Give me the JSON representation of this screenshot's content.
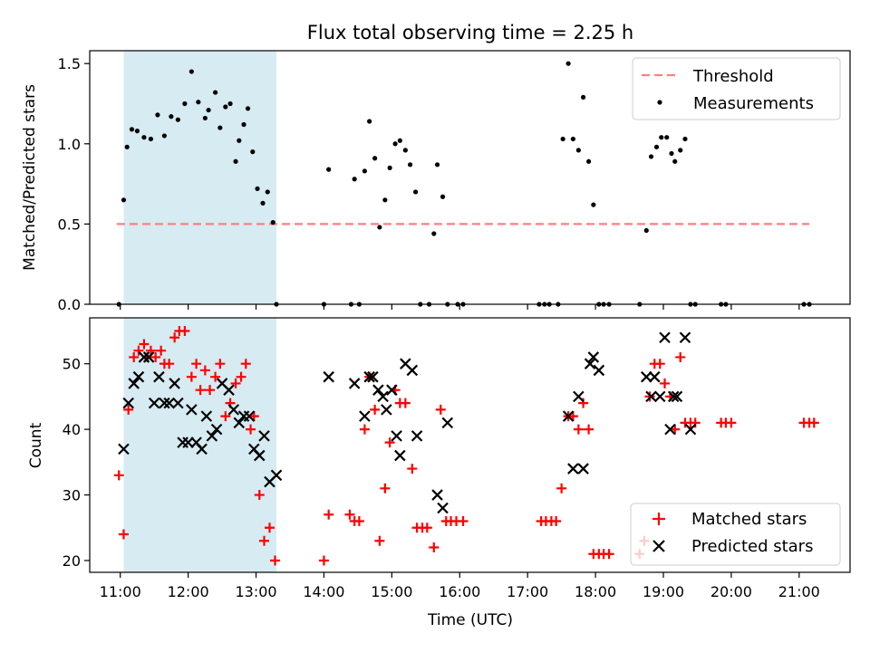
{
  "title": "Flux total observing time = 2.25 h",
  "colors": {
    "threshold": "#ff7f7f",
    "measurement": "#000000",
    "matched": "#ff0000",
    "predicted": "#000000",
    "highlight": "#add8e6"
  },
  "chart_data": [
    {
      "type": "scatter",
      "ylabel": "Matched/Predicted stars",
      "xlim": [
        10.55,
        21.75
      ],
      "ylim": [
        0,
        1.58
      ],
      "yticks": [
        0.0,
        0.5,
        1.0,
        1.5
      ],
      "ytick_labels": [
        "0.0",
        "0.5",
        "1.0",
        "1.5"
      ],
      "highlight_span": [
        11.05,
        13.3
      ],
      "grid": false,
      "legend_position": "upper right",
      "threshold": {
        "name": "Threshold",
        "value": 0.5,
        "x_range": [
          10.95,
          21.15
        ]
      },
      "series": [
        {
          "name": "Measurements",
          "x": [
            10.98,
            11.05,
            11.1,
            11.17,
            11.25,
            11.35,
            11.45,
            11.55,
            11.65,
            11.75,
            11.85,
            11.95,
            12.05,
            12.15,
            12.25,
            12.3,
            12.4,
            12.47,
            12.55,
            12.62,
            12.7,
            12.75,
            12.82,
            12.88,
            12.95,
            13.02,
            13.1,
            13.17,
            13.25,
            13.3,
            14.0,
            14.07,
            14.4,
            14.45,
            14.52,
            14.6,
            14.67,
            14.75,
            14.82,
            14.9,
            14.97,
            15.05,
            15.12,
            15.2,
            15.27,
            15.35,
            15.42,
            15.55,
            15.62,
            15.67,
            15.75,
            15.82,
            15.97,
            16.05,
            17.17,
            17.25,
            17.32,
            17.45,
            17.52,
            17.6,
            17.67,
            17.75,
            17.82,
            17.9,
            17.97,
            18.05,
            18.12,
            18.2,
            18.65,
            18.75,
            18.82,
            18.9,
            18.97,
            19.05,
            19.12,
            19.17,
            19.25,
            19.32,
            19.4,
            19.47,
            19.85,
            19.92,
            21.07,
            21.15
          ],
          "y": [
            0.0,
            0.65,
            0.98,
            1.09,
            1.08,
            1.04,
            1.03,
            1.18,
            1.05,
            1.17,
            1.15,
            1.25,
            1.45,
            1.26,
            1.16,
            1.21,
            1.32,
            1.1,
            1.23,
            1.25,
            0.89,
            1.02,
            1.12,
            1.22,
            0.95,
            0.72,
            0.63,
            0.7,
            0.51,
            0.0,
            0.0,
            0.84,
            0.0,
            0.78,
            0.0,
            0.83,
            1.14,
            0.91,
            0.48,
            0.65,
            0.85,
            1.0,
            1.02,
            0.96,
            0.87,
            0.7,
            0.0,
            0.0,
            0.44,
            0.87,
            0.67,
            0.0,
            0.0,
            0.0,
            0.0,
            0.0,
            0.0,
            0.0,
            1.03,
            1.5,
            1.03,
            0.96,
            1.29,
            0.89,
            0.62,
            0.0,
            0.0,
            0.0,
            0.0,
            0.46,
            0.92,
            0.98,
            1.04,
            1.04,
            0.94,
            0.89,
            0.96,
            1.03,
            0.0,
            0.0,
            0.0,
            0.0,
            0.0,
            0.0
          ]
        }
      ]
    },
    {
      "type": "scatter",
      "xlabel": "Time (UTC)",
      "ylabel": "Count",
      "xlim": [
        10.55,
        21.75
      ],
      "ylim": [
        18.2,
        57.0
      ],
      "xticks": [
        11,
        12,
        13,
        14,
        15,
        16,
        17,
        18,
        19,
        20,
        21
      ],
      "xtick_labels": [
        "11:00",
        "12:00",
        "13:00",
        "14:00",
        "15:00",
        "16:00",
        "17:00",
        "18:00",
        "19:00",
        "20:00",
        "21:00"
      ],
      "yticks": [
        20,
        30,
        40,
        50
      ],
      "ytick_labels": [
        "20",
        "30",
        "40",
        "50"
      ],
      "highlight_span": [
        11.05,
        13.3
      ],
      "grid": false,
      "legend_position": "lower right",
      "series": [
        {
          "name": "Matched stars",
          "marker": "plus",
          "x": [
            10.98,
            11.05,
            11.12,
            11.2,
            11.27,
            11.35,
            11.4,
            11.45,
            11.52,
            11.6,
            11.65,
            11.72,
            11.8,
            11.87,
            11.95,
            12.05,
            12.12,
            12.18,
            12.25,
            12.32,
            12.4,
            12.47,
            12.55,
            12.62,
            12.7,
            12.78,
            12.85,
            12.92,
            12.97,
            13.05,
            13.12,
            13.2,
            13.28,
            14.0,
            14.07,
            14.38,
            14.45,
            14.52,
            14.6,
            14.67,
            14.75,
            14.82,
            14.9,
            14.97,
            15.05,
            15.12,
            15.2,
            15.3,
            15.37,
            15.45,
            15.52,
            15.62,
            15.72,
            15.8,
            15.87,
            15.95,
            16.05,
            17.2,
            17.27,
            17.35,
            17.42,
            17.5,
            17.6,
            17.67,
            17.75,
            17.82,
            17.9,
            17.97,
            18.05,
            18.12,
            18.2,
            18.65,
            18.72,
            18.8,
            18.87,
            18.95,
            19.02,
            19.1,
            19.17,
            19.25,
            19.32,
            19.4,
            19.47,
            19.85,
            19.92,
            20.0,
            21.07,
            21.15,
            21.22
          ],
          "y": [
            33,
            24,
            43,
            51,
            52,
            53,
            51,
            52,
            51,
            52,
            50,
            50,
            54,
            55,
            55,
            48,
            50,
            46,
            49,
            46,
            48,
            50,
            42,
            44,
            47,
            48,
            50,
            40,
            42,
            30,
            23,
            25,
            20,
            20,
            27,
            27,
            26,
            26,
            40,
            48,
            43,
            23,
            31,
            38,
            46,
            44,
            44,
            34,
            25,
            25,
            25,
            22,
            43,
            26,
            26,
            26,
            26,
            26,
            26,
            26,
            26,
            31,
            42,
            42,
            40,
            44,
            40,
            21,
            21,
            21,
            21,
            21,
            23,
            45,
            50,
            50,
            47,
            45,
            40,
            51,
            41,
            41,
            41,
            41,
            41,
            41,
            41,
            41,
            41
          ]
        },
        {
          "name": "Predicted stars",
          "marker": "x",
          "x": [
            11.05,
            11.12,
            11.2,
            11.27,
            11.35,
            11.42,
            11.5,
            11.57,
            11.65,
            11.72,
            11.8,
            11.85,
            11.92,
            12.0,
            12.05,
            12.12,
            12.2,
            12.27,
            12.35,
            12.42,
            12.5,
            12.6,
            12.67,
            12.75,
            12.82,
            12.9,
            12.97,
            13.05,
            13.12,
            13.2,
            13.3,
            14.07,
            14.45,
            14.6,
            14.67,
            14.72,
            14.8,
            14.87,
            14.92,
            15.0,
            15.07,
            15.12,
            15.2,
            15.3,
            15.37,
            15.67,
            15.75,
            15.82,
            17.6,
            17.67,
            17.75,
            17.82,
            17.92,
            17.97,
            18.05,
            18.75,
            18.82,
            18.87,
            18.95,
            19.02,
            19.1,
            19.15,
            19.2,
            19.32,
            19.4
          ],
          "y": [
            37,
            44,
            47,
            48,
            51,
            51,
            44,
            48,
            44,
            44,
            47,
            44,
            38,
            38,
            43,
            38,
            37,
            42,
            39,
            40,
            47,
            46,
            43,
            41,
            42,
            42,
            37,
            36,
            39,
            32,
            33,
            48,
            47,
            42,
            48,
            48,
            46,
            45,
            43,
            46,
            39,
            36,
            50,
            49,
            39,
            30,
            28,
            41,
            42,
            34,
            45,
            34,
            50,
            51,
            49,
            48,
            45,
            48,
            45,
            54,
            40,
            45,
            45,
            54,
            40
          ]
        }
      ]
    }
  ]
}
